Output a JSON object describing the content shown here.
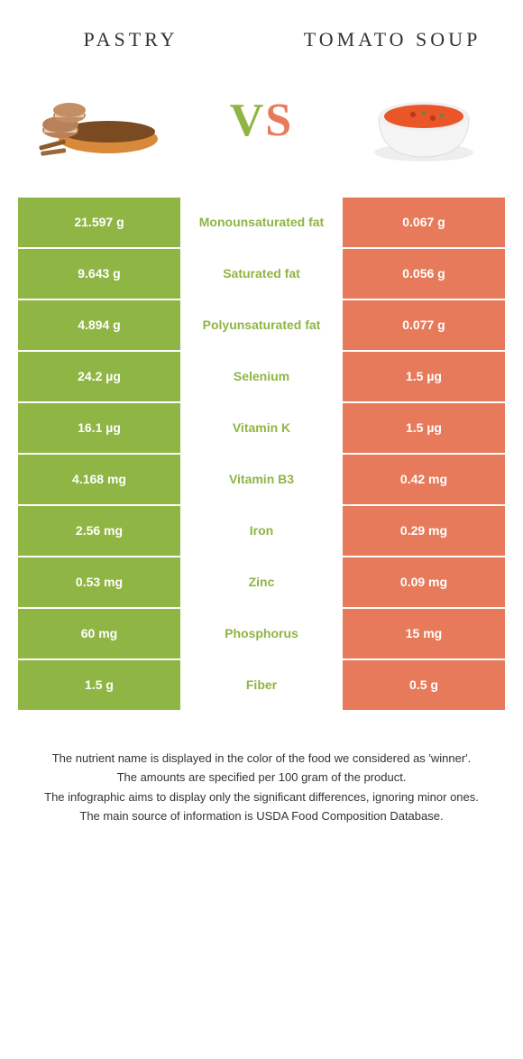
{
  "colors": {
    "left_bg": "#8fb544",
    "left_text": "#8fb544",
    "right_bg": "#e77a5a",
    "right_text": "#e77a5a",
    "vs_v_color": "#8fb544",
    "vs_s_color": "#e77a5a",
    "row_border": "#ffffff"
  },
  "header": {
    "left_title": "PASTRY",
    "right_title": "TOMATO SOUP",
    "vs_v": "V",
    "vs_s": "S"
  },
  "rows": [
    {
      "left": "21.597 g",
      "mid": "Monounsaturated fat",
      "right": "0.067 g",
      "winner": "left"
    },
    {
      "left": "9.643 g",
      "mid": "Saturated fat",
      "right": "0.056 g",
      "winner": "left"
    },
    {
      "left": "4.894 g",
      "mid": "Polyunsaturated fat",
      "right": "0.077 g",
      "winner": "left"
    },
    {
      "left": "24.2 µg",
      "mid": "Selenium",
      "right": "1.5 µg",
      "winner": "left"
    },
    {
      "left": "16.1 µg",
      "mid": "Vitamin K",
      "right": "1.5 µg",
      "winner": "left"
    },
    {
      "left": "4.168 mg",
      "mid": "Vitamin B3",
      "right": "0.42 mg",
      "winner": "left"
    },
    {
      "left": "2.56 mg",
      "mid": "Iron",
      "right": "0.29 mg",
      "winner": "left"
    },
    {
      "left": "0.53 mg",
      "mid": "Zinc",
      "right": "0.09 mg",
      "winner": "left"
    },
    {
      "left": "60 mg",
      "mid": "Phosphorus",
      "right": "15 mg",
      "winner": "left"
    },
    {
      "left": "1.5 g",
      "mid": "Fiber",
      "right": "0.5 g",
      "winner": "left"
    }
  ],
  "footnotes": [
    "The nutrient name is displayed in the color of the food we considered as 'winner'.",
    "The amounts are specified per 100 gram of the product.",
    "The infographic aims to display only the significant differences, ignoring minor ones.",
    "The main source of information is USDA Food Composition Database."
  ]
}
